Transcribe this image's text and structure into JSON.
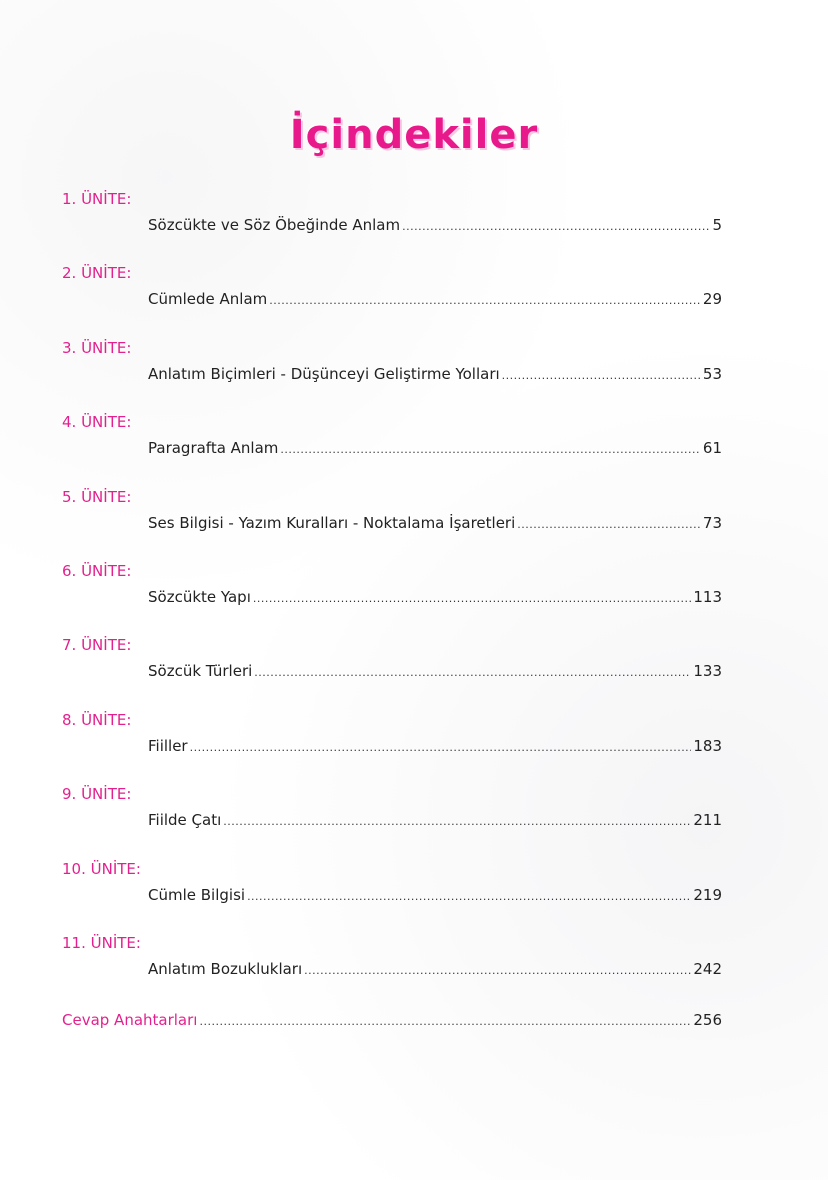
{
  "title": "İçindekiler",
  "accent_color": "#e3218e",
  "units": [
    {
      "label": "1. ÜNİTE:",
      "entry": "Sözcükte ve Söz Öbeğinde Anlam",
      "page": "5"
    },
    {
      "label": "2. ÜNİTE:",
      "entry": "Cümlede Anlam",
      "page": "29"
    },
    {
      "label": "3. ÜNİTE:",
      "entry": "Anlatım Biçimleri - Düşünceyi Geliştirme Yolları",
      "page": "53"
    },
    {
      "label": "4. ÜNİTE:",
      "entry": "Paragrafta Anlam",
      "page": "61"
    },
    {
      "label": "5. ÜNİTE:",
      "entry": "Ses Bilgisi - Yazım Kuralları - Noktalama İşaretleri",
      "page": "73"
    },
    {
      "label": "6. ÜNİTE:",
      "entry": "Sözcükte Yapı",
      "page": "113"
    },
    {
      "label": "7. ÜNİTE:",
      "entry": "Sözcük Türleri",
      "page": "133"
    },
    {
      "label": "8. ÜNİTE:",
      "entry": "Fiiller",
      "page": "183"
    },
    {
      "label": "9. ÜNİTE:",
      "entry": "Fiilde Çatı",
      "page": "211"
    },
    {
      "label": "10. ÜNİTE:",
      "entry": "Cümle Bilgisi",
      "page": "219"
    },
    {
      "label": "11. ÜNİTE:",
      "entry": "Anlatım Bozuklukları",
      "page": "242"
    }
  ],
  "answer_key": {
    "label": "Cevap Anahtarları",
    "page": "256"
  }
}
